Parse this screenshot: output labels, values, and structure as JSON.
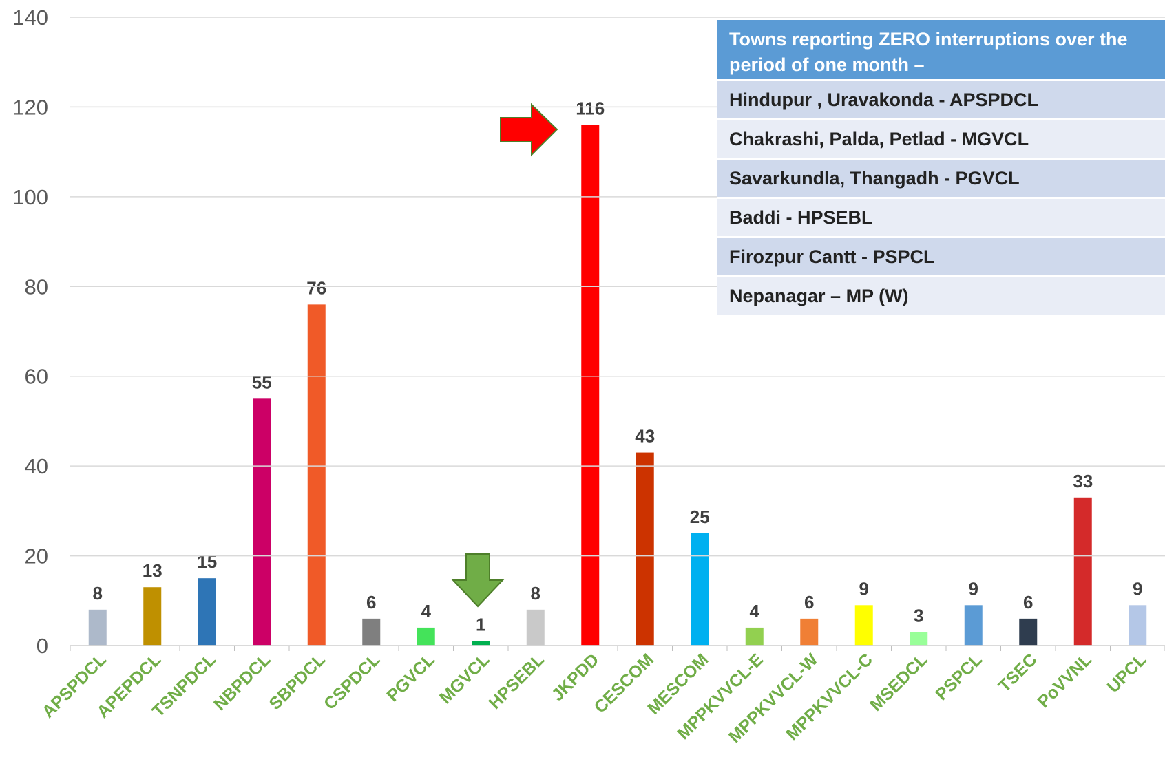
{
  "chart_data": {
    "type": "bar",
    "categories": [
      "APSPDCL",
      "APEPDCL",
      "TSNPDCL",
      "NBPDCL",
      "SBPDCL",
      "CSPDCL",
      "PGVCL",
      "MGVCL",
      "HPSEBL",
      "JKPDD",
      "CESCOM",
      "MESCOM",
      "MPPKVVCL-E",
      "MPPKVVCL-W",
      "MPPKVVCL-C",
      "MSEDCL",
      "PSPCL",
      "TSEC",
      "PoVVNL",
      "UPCL"
    ],
    "values": [
      8,
      13,
      15,
      55,
      76,
      6,
      4,
      1,
      8,
      116,
      43,
      25,
      4,
      6,
      9,
      3,
      9,
      6,
      33,
      9
    ],
    "colors": [
      "#adb9ca",
      "#bf9000",
      "#2e75b6",
      "#cc0066",
      "#f05a28",
      "#7f7f7f",
      "#44e35a",
      "#00b050",
      "#c9c9c9",
      "#ff0000",
      "#cc3300",
      "#00b0f0",
      "#92d050",
      "#f07f35",
      "#ffff00",
      "#99ff99",
      "#5b9bd5",
      "#2f3d4f",
      "#d42a2a",
      "#b4c7e7"
    ],
    "ylim": [
      0,
      140
    ],
    "yticks": [
      0,
      20,
      40,
      60,
      80,
      100,
      120,
      140
    ],
    "grid": true
  },
  "info_box": {
    "title": "Towns reporting ZERO interruptions over the period of one month –",
    "rows": [
      "Hindupur , Uravakonda - APSPDCL",
      "Chakrashi, Palda, Petlad  - MGVCL",
      "Savarkundla, Thangadh - PGVCL",
      "Baddi - HPSEBL",
      "Firozpur Cantt - PSPCL",
      "Nepanagar – MP (W)"
    ]
  }
}
